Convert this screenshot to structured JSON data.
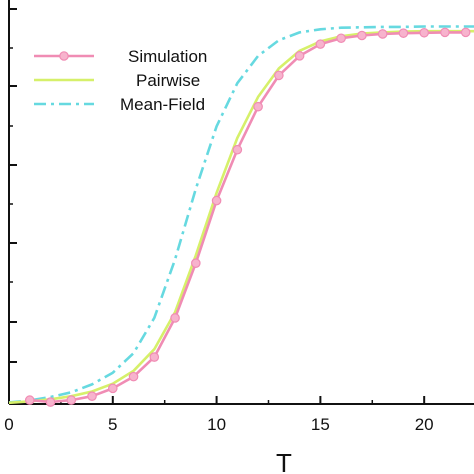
{
  "chart_data": {
    "type": "line",
    "xlabel": "T",
    "xlim": [
      0,
      22.4
    ],
    "ylim": [
      0,
      1.02
    ],
    "xticks": [
      0,
      5,
      10,
      15,
      20
    ],
    "ytick_count": 7,
    "grid": false,
    "legend_position": "top-left",
    "series": [
      {
        "name": "Simulation",
        "style": "solid-with-markers",
        "color": "#f08cb4",
        "marker_color": "#f7b3cd",
        "x": [
          1,
          2,
          3,
          4,
          5,
          6,
          7,
          8,
          9,
          10,
          11,
          12,
          13,
          14,
          15,
          16,
          17,
          18,
          19,
          20,
          21,
          22
        ],
        "y": [
          0.01,
          0.005,
          0.01,
          0.02,
          0.04,
          0.07,
          0.12,
          0.22,
          0.36,
          0.52,
          0.65,
          0.76,
          0.84,
          0.89,
          0.92,
          0.935,
          0.942,
          0.946,
          0.948,
          0.949,
          0.95,
          0.95
        ]
      },
      {
        "name": "Pairwise",
        "style": "solid",
        "color": "#d6f06a",
        "x": [
          0,
          1,
          2,
          3,
          4,
          5,
          6,
          7,
          8,
          9,
          10,
          11,
          12,
          13,
          14,
          15,
          16,
          17,
          18,
          19,
          20,
          21,
          22.4
        ],
        "y": [
          0.003,
          0.007,
          0.012,
          0.02,
          0.032,
          0.052,
          0.085,
          0.14,
          0.235,
          0.38,
          0.54,
          0.68,
          0.785,
          0.858,
          0.903,
          0.927,
          0.94,
          0.947,
          0.95,
          0.952,
          0.953,
          0.953,
          0.953
        ]
      },
      {
        "name": "Mean-Field",
        "style": "dash-dot",
        "color": "#66d9e0",
        "x": [
          0,
          1,
          2,
          3,
          4,
          5,
          6,
          7,
          8,
          9,
          10,
          11,
          12,
          13,
          14,
          15,
          16,
          17,
          18,
          19,
          20,
          21,
          22.4
        ],
        "y": [
          0.004,
          0.009,
          0.018,
          0.03,
          0.05,
          0.08,
          0.13,
          0.22,
          0.37,
          0.55,
          0.71,
          0.82,
          0.89,
          0.93,
          0.95,
          0.958,
          0.962,
          0.963,
          0.964,
          0.964,
          0.965,
          0.965,
          0.965
        ]
      }
    ]
  }
}
